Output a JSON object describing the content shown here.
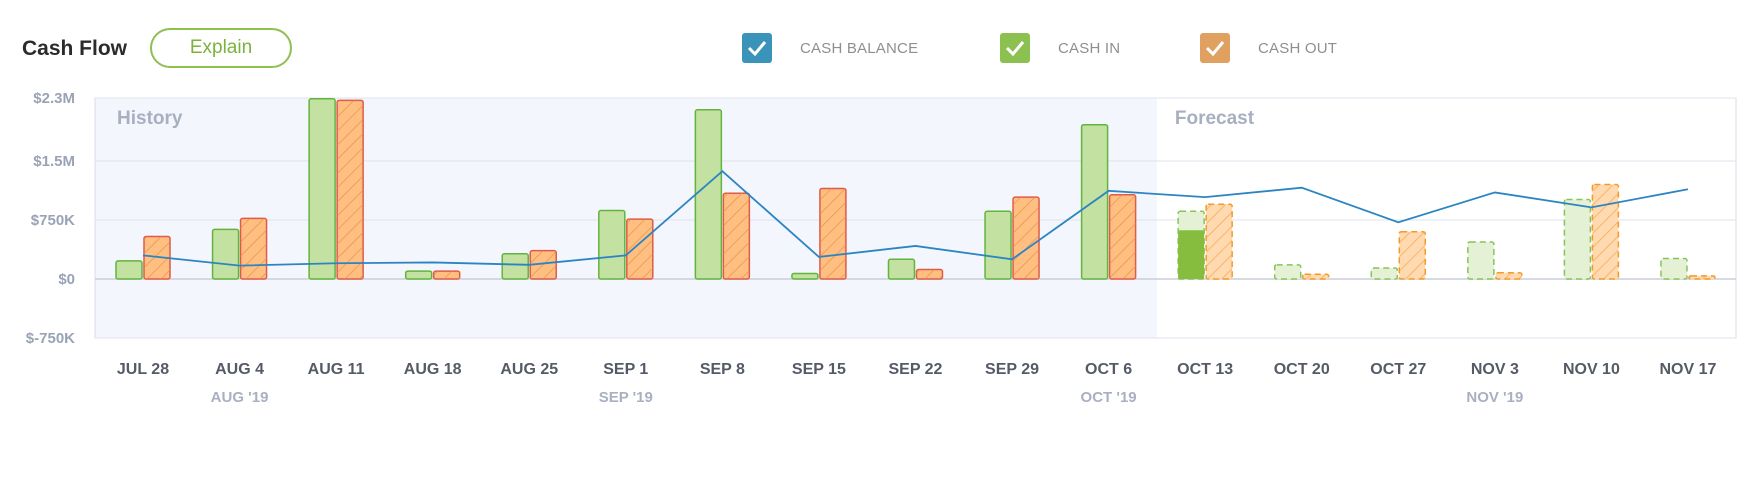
{
  "header": {
    "title": "Cash Flow",
    "explain_label": "Explain"
  },
  "legend": [
    {
      "label": "CASH BALANCE",
      "color": "#3a93b8"
    },
    {
      "label": "CASH IN",
      "color": "#8cc152"
    },
    {
      "label": "CASH OUT",
      "color": "#e0a060"
    }
  ],
  "colors": {
    "in_fill": "#c3e1a0",
    "in_stroke": "#62b43f",
    "out_fill": "#ffbf80",
    "out_stroke": "#e05a4a",
    "forecast_in_fill": "#e4f1d4",
    "forecast_in_stroke": "#86c45a",
    "forecast_in_actual": "#86bd3e",
    "forecast_out_fill": "#ffd9b0",
    "forecast_out_stroke": "#f59a27",
    "balance_line": "#2c85c2",
    "history_bg": "#f3f6fc"
  },
  "chart_data": {
    "type": "bar",
    "regions": {
      "history": "History",
      "forecast": "Forecast"
    },
    "categories": [
      "JUL 28",
      "AUG 4",
      "AUG 11",
      "AUG 18",
      "AUG 25",
      "SEP 1",
      "SEP 8",
      "SEP 15",
      "SEP 22",
      "SEP 29",
      "OCT 6",
      "OCT 13",
      "OCT 20",
      "OCT 27",
      "NOV 3",
      "NOV 10",
      "NOV 17"
    ],
    "forecast_start_index": 11,
    "months": [
      {
        "label": "AUG '19",
        "index": 1
      },
      {
        "label": "SEP '19",
        "index": 5
      },
      {
        "label": "OCT '19",
        "index": 10
      },
      {
        "label": "NOV '19",
        "index": 14
      }
    ],
    "y_ticks": [
      {
        "value": 2300000,
        "label": "$2.3M"
      },
      {
        "value": 1500000,
        "label": "$1.5M"
      },
      {
        "value": 750000,
        "label": "$750K"
      },
      {
        "value": 0,
        "label": "$0"
      },
      {
        "value": -750000,
        "label": "$-750K"
      }
    ],
    "ylim": [
      -750000,
      2300000
    ],
    "series": [
      {
        "name": "CASH IN",
        "values": [
          230000,
          630000,
          2290000,
          100000,
          320000,
          870000,
          2150000,
          70000,
          250000,
          860000,
          1960000,
          860000,
          180000,
          140000,
          470000,
          1010000,
          260000
        ]
      },
      {
        "name": "CASH OUT",
        "values": [
          540000,
          770000,
          2270000,
          100000,
          360000,
          760000,
          1090000,
          1150000,
          120000,
          1040000,
          1070000,
          950000,
          60000,
          600000,
          80000,
          1200000,
          40000
        ]
      },
      {
        "name": "CASH BALANCE",
        "values": [
          300000,
          170000,
          200000,
          210000,
          180000,
          300000,
          1370000,
          280000,
          420000,
          250000,
          1120000,
          1040000,
          1160000,
          720000,
          1100000,
          910000,
          1140000
        ]
      }
    ],
    "forecast_in_actual": {
      "index": 11,
      "value": 620000
    }
  }
}
